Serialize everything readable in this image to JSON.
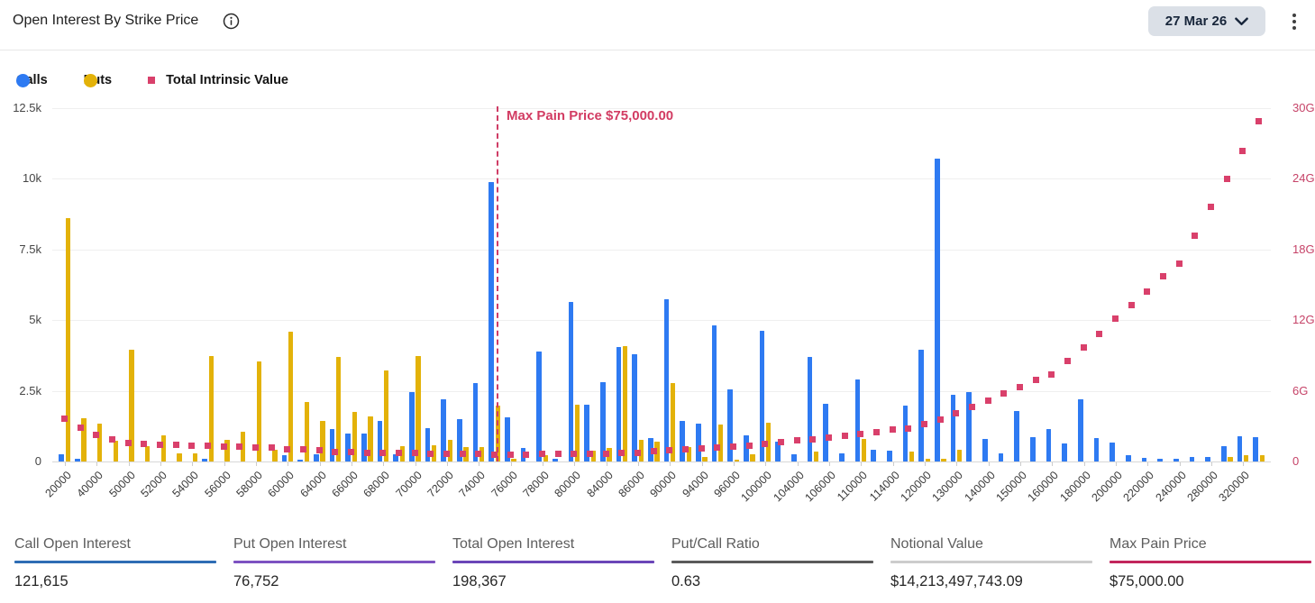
{
  "header": {
    "title": "Open Interest By Strike Price",
    "expiry_selected": "27 Mar 26"
  },
  "legend": {
    "items": [
      {
        "label": "Calls",
        "color": "#2e7af2",
        "shape": "circle"
      },
      {
        "label": "Puts",
        "color": "#e3b209",
        "shape": "circle"
      },
      {
        "label": "Total Intrinsic Value",
        "color": "#d9406b",
        "shape": "square"
      }
    ]
  },
  "chart_data": {
    "type": "bar",
    "title": "Open Interest By Strike Price",
    "xlabel": "Strike Price",
    "left_axis": {
      "ticks": [
        "0",
        "2.5k",
        "5k",
        "7.5k",
        "10k",
        "12.5k"
      ],
      "max": 12500
    },
    "right_axis": {
      "ticks": [
        "0",
        "6G",
        "12G",
        "18G",
        "24G",
        "30G"
      ],
      "max": 30,
      "color": "#c64368"
    },
    "grid": true,
    "legend_position": "top-left",
    "annotation": {
      "label": "Max Pain Price $75,000.00",
      "strike": 75000,
      "color": "#d23c63"
    },
    "x_labels_shown": [
      20000,
      40000,
      50000,
      52000,
      54000,
      56000,
      58000,
      60000,
      64000,
      66000,
      68000,
      70000,
      72000,
      74000,
      76000,
      78000,
      80000,
      84000,
      86000,
      90000,
      94000,
      96000,
      100000,
      104000,
      106000,
      110000,
      114000,
      120000,
      130000,
      140000,
      150000,
      160000,
      180000,
      200000,
      220000,
      240000,
      280000,
      320000
    ],
    "categories": [
      20000,
      30000,
      40000,
      45000,
      50000,
      51000,
      52000,
      53000,
      54000,
      55000,
      56000,
      57000,
      58000,
      59000,
      60000,
      62000,
      64000,
      65000,
      66000,
      67000,
      68000,
      69000,
      70000,
      71000,
      72000,
      73000,
      74000,
      75000,
      76000,
      77000,
      78000,
      79000,
      80000,
      82000,
      84000,
      85000,
      86000,
      88000,
      90000,
      92000,
      94000,
      95000,
      96000,
      98000,
      100000,
      102000,
      104000,
      105000,
      106000,
      108000,
      110000,
      112000,
      114000,
      116000,
      120000,
      125000,
      130000,
      135000,
      140000,
      145000,
      150000,
      155000,
      160000,
      170000,
      180000,
      190000,
      200000,
      210000,
      220000,
      230000,
      240000,
      260000,
      280000,
      300000,
      320000,
      340000
    ],
    "series": [
      {
        "name": "Calls",
        "color": "#2e7af2",
        "values": [
          250,
          100,
          0,
          0,
          0,
          0,
          0,
          0,
          0,
          100,
          0,
          0,
          0,
          0,
          230,
          60,
          260,
          1150,
          985,
          985,
          1450,
          260,
          2450,
          1190,
          2210,
          1495,
          2790,
          9900,
          1550,
          475,
          3885,
          100,
          5650,
          2010,
          2800,
          4050,
          3800,
          845,
          5750,
          1440,
          1340,
          4800,
          2550,
          930,
          4610,
          715,
          250,
          3690,
          2045,
          300,
          2900,
          430,
          390,
          1980,
          3960,
          10700,
          2360,
          2445,
          800,
          300,
          1795,
          875,
          1145,
          625,
          2195,
          845,
          680,
          230,
          140,
          110,
          110,
          155,
          155,
          550,
          900,
          870
        ]
      },
      {
        "name": "Puts",
        "color": "#e3b209",
        "values": [
          8600,
          1520,
          1330,
          720,
          3960,
          550,
          930,
          280,
          285,
          3740,
          770,
          1060,
          3550,
          430,
          4580,
          2100,
          1420,
          3710,
          1765,
          1590,
          3230,
          550,
          3745,
          585,
          770,
          500,
          500,
          1980,
          80,
          0,
          230,
          0,
          2010,
          370,
          475,
          4075,
          770,
          715,
          2770,
          520,
          175,
          1310,
          70,
          260,
          1365,
          0,
          0,
          355,
          0,
          0,
          790,
          0,
          0,
          355,
          90,
          100,
          410,
          0,
          0,
          0,
          0,
          0,
          0,
          0,
          0,
          0,
          0,
          0,
          0,
          0,
          0,
          0,
          0,
          150,
          225,
          215
        ]
      },
      {
        "name": "Total Intrinsic Value",
        "color": "#d9406b",
        "axis": "right",
        "unit": "G",
        "values": [
          3.6,
          2.9,
          2.25,
          1.85,
          1.6,
          1.5,
          1.45,
          1.42,
          1.35,
          1.33,
          1.28,
          1.25,
          1.22,
          1.18,
          1.05,
          1.0,
          0.95,
          0.82,
          0.8,
          0.76,
          0.74,
          0.71,
          0.7,
          0.68,
          0.66,
          0.64,
          0.62,
          0.6,
          0.6,
          0.61,
          0.62,
          0.63,
          0.64,
          0.66,
          0.68,
          0.7,
          0.73,
          0.85,
          0.95,
          1.05,
          1.12,
          1.2,
          1.28,
          1.36,
          1.5,
          1.65,
          1.83,
          1.9,
          2.0,
          2.15,
          2.3,
          2.45,
          2.68,
          2.82,
          3.15,
          3.55,
          4.1,
          4.65,
          5.2,
          5.75,
          6.3,
          6.9,
          7.35,
          8.5,
          9.65,
          10.8,
          12.1,
          13.3,
          14.4,
          15.7,
          16.8,
          19.2,
          21.6,
          24.0,
          26.4,
          28.9
        ]
      }
    ]
  },
  "stats": {
    "items": [
      {
        "label": "Call Open Interest",
        "value": "121,615",
        "accent": "#2e6db4"
      },
      {
        "label": "Put Open Interest",
        "value": "76,752",
        "accent": "#7d52c1"
      },
      {
        "label": "Total Open Interest",
        "value": "198,367",
        "accent": "#6b45b8"
      },
      {
        "label": "Put/Call Ratio",
        "value": "0.63",
        "accent": "#5a5a5a"
      },
      {
        "label": "Notional Value",
        "value": "$14,213,497,743.09",
        "accent": "#cccccc"
      },
      {
        "label": "Max Pain Price",
        "value": "$75,000.00",
        "accent": "#c2255c"
      }
    ]
  }
}
